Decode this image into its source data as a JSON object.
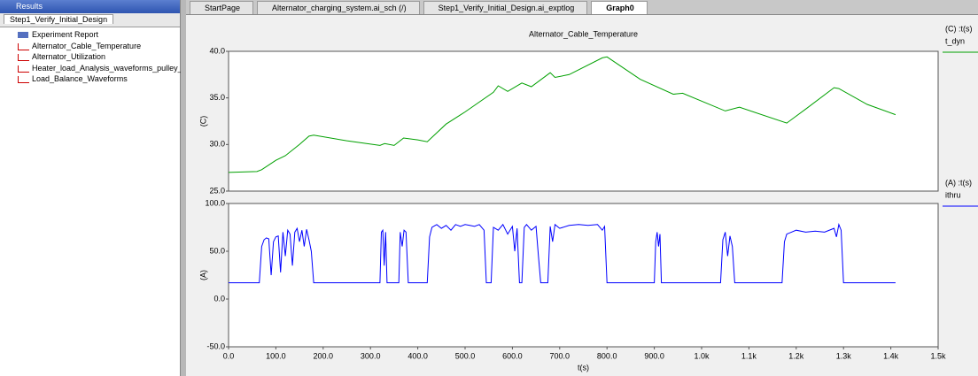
{
  "results_panel": {
    "title": "Results",
    "tab": "Step1_Verify_Initial_Design",
    "items": [
      "Experiment Report",
      "Alternator_Cable_Temperature",
      "Alternator_Utilization",
      "Heater_load_Analysis_waveforms_pulley_rati",
      "Load_Balance_Waveforms"
    ]
  },
  "tabs": [
    "StartPage",
    "Alternator_charging_system.ai_sch (/)",
    "Step1_Verify_Initial_Design.ai_exptlog",
    "Graph0"
  ],
  "chart_data": [
    {
      "type": "line",
      "title": "Alternator_Cable_Temperature",
      "y_label": "(C)",
      "legend_header": "(C) :t(s)",
      "xlim": [
        0,
        1500
      ],
      "ylim": [
        25,
        40
      ],
      "yticks": [
        {
          "value": 25,
          "label": "25.0"
        },
        {
          "value": 30,
          "label": "30.0"
        },
        {
          "value": 35,
          "label": "35.0"
        },
        {
          "value": 40,
          "label": "40.0"
        }
      ],
      "series": [
        {
          "name": "t_dyn",
          "color": "#00a000",
          "x": [
            0,
            60,
            70,
            100,
            120,
            150,
            170,
            180,
            250,
            320,
            330,
            350,
            370,
            400,
            420,
            460,
            500,
            560,
            570,
            590,
            620,
            640,
            680,
            690,
            720,
            790,
            800,
            870,
            940,
            960,
            1050,
            1080,
            1180,
            1220,
            1280,
            1290,
            1350,
            1410
          ],
          "values": [
            27.0,
            27.1,
            27.3,
            28.3,
            28.8,
            30.0,
            30.9,
            31.0,
            30.4,
            29.9,
            30.1,
            29.9,
            30.7,
            30.5,
            30.3,
            32.2,
            33.5,
            35.6,
            36.3,
            35.7,
            36.6,
            36.2,
            37.7,
            37.2,
            37.5,
            39.3,
            39.4,
            37.0,
            35.4,
            35.5,
            33.6,
            34.0,
            32.3,
            33.8,
            36.1,
            36.0,
            34.3,
            33.2
          ]
        }
      ]
    },
    {
      "type": "line",
      "y_label": "(A)",
      "x_label": "t(s)",
      "legend_header": "(A) :t(s)",
      "xlim": [
        0,
        1500
      ],
      "ylim": [
        -50,
        100
      ],
      "xticks": [
        {
          "value": 0,
          "label": "0.0"
        },
        {
          "value": 100,
          "label": "100.0"
        },
        {
          "value": 200,
          "label": "200.0"
        },
        {
          "value": 300,
          "label": "300.0"
        },
        {
          "value": 400,
          "label": "400.0"
        },
        {
          "value": 500,
          "label": "500.0"
        },
        {
          "value": 600,
          "label": "600.0"
        },
        {
          "value": 700,
          "label": "700.0"
        },
        {
          "value": 800,
          "label": "800.0"
        },
        {
          "value": 900,
          "label": "900.0"
        },
        {
          "value": 1000,
          "label": "1.0k"
        },
        {
          "value": 1100,
          "label": "1.1k"
        },
        {
          "value": 1200,
          "label": "1.2k"
        },
        {
          "value": 1300,
          "label": "1.3k"
        },
        {
          "value": 1400,
          "label": "1.4k"
        },
        {
          "value": 1500,
          "label": "1.5k"
        }
      ],
      "yticks": [
        {
          "value": -50,
          "label": "-50.0"
        },
        {
          "value": 0,
          "label": "0.0"
        },
        {
          "value": 50,
          "label": "50.0"
        },
        {
          "value": 100,
          "label": "100.0"
        }
      ],
      "series": [
        {
          "name": "ithru",
          "color": "#0000ff",
          "x": [
            0,
            65,
            70,
            75,
            80,
            85,
            90,
            95,
            100,
            105,
            110,
            115,
            120,
            125,
            130,
            135,
            140,
            145,
            150,
            155,
            160,
            165,
            170,
            175,
            180,
            320,
            323,
            326,
            329,
            332,
            335,
            360,
            363,
            367,
            371,
            375,
            380,
            420,
            425,
            430,
            440,
            450,
            460,
            470,
            480,
            490,
            500,
            510,
            520,
            530,
            540,
            545,
            555,
            560,
            570,
            580,
            590,
            600,
            605,
            610,
            615,
            620,
            625,
            630,
            640,
            650,
            655,
            660,
            675,
            680,
            685,
            690,
            700,
            720,
            740,
            760,
            780,
            790,
            795,
            800,
            900,
            903,
            906,
            909,
            912,
            915,
            1040,
            1045,
            1050,
            1055,
            1060,
            1065,
            1070,
            1170,
            1175,
            1180,
            1200,
            1220,
            1240,
            1260,
            1280,
            1285,
            1290,
            1295,
            1300,
            1410
          ],
          "values": [
            17,
            17,
            55,
            62,
            64,
            63,
            25,
            60,
            65,
            66,
            28,
            70,
            45,
            72,
            68,
            35,
            70,
            74,
            60,
            72,
            55,
            73,
            62,
            50,
            17,
            17,
            70,
            72,
            35,
            70,
            17,
            17,
            70,
            55,
            72,
            70,
            17,
            17,
            65,
            75,
            78,
            74,
            77,
            72,
            78,
            76,
            78,
            77,
            76,
            78,
            72,
            17,
            17,
            75,
            72,
            78,
            68,
            76,
            50,
            74,
            17,
            17,
            75,
            78,
            72,
            76,
            45,
            17,
            17,
            76,
            60,
            78,
            74,
            77,
            78,
            77,
            78,
            72,
            76,
            17,
            17,
            60,
            70,
            55,
            68,
            17,
            17,
            62,
            70,
            45,
            66,
            55,
            17,
            17,
            60,
            68,
            72,
            70,
            71,
            70,
            74,
            65,
            78,
            72,
            17,
            17
          ]
        }
      ]
    }
  ]
}
